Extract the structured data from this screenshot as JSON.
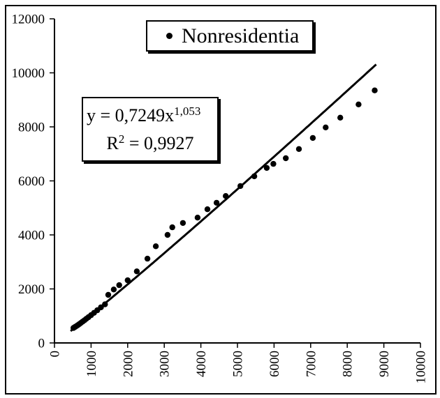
{
  "chart_data": {
    "type": "scatter",
    "title": "",
    "xlabel": "",
    "ylabel": "",
    "xlim": [
      0,
      10000
    ],
    "ylim": [
      0,
      12000
    ],
    "x_ticks": [
      0,
      1000,
      2000,
      3000,
      4000,
      5000,
      6000,
      7000,
      8000,
      9000,
      10000
    ],
    "y_ticks": [
      0,
      2000,
      4000,
      6000,
      8000,
      10000,
      12000
    ],
    "x_tick_rotation": -90,
    "grid": false,
    "legend": {
      "label": "Nonresidentia",
      "marker": "filled-circle",
      "position": "top-center"
    },
    "annotation": {
      "equation_base": "y = 0,7249x",
      "equation_exponent": "1,053",
      "r2_base": "R",
      "r2_exponent": "2",
      "r2_rest": " = 0,9927"
    },
    "colors": {
      "series": "#000000",
      "trendline": "#000000",
      "background": "#ffffff",
      "border": "#000000"
    },
    "series": [
      {
        "name": "Nonresidentia",
        "type": "scatter",
        "color": "#000000",
        "points": [
          [
            520,
            555
          ],
          [
            560,
            590
          ],
          [
            600,
            625
          ],
          [
            640,
            660
          ],
          [
            680,
            700
          ],
          [
            720,
            740
          ],
          [
            770,
            790
          ],
          [
            820,
            840
          ],
          [
            870,
            895
          ],
          [
            930,
            955
          ],
          [
            1000,
            1030
          ],
          [
            1080,
            1115
          ],
          [
            1170,
            1210
          ],
          [
            1270,
            1320
          ],
          [
            1380,
            1430
          ],
          [
            1470,
            1780
          ],
          [
            1620,
            1980
          ],
          [
            1770,
            2140
          ],
          [
            2000,
            2320
          ],
          [
            2250,
            2650
          ],
          [
            2540,
            3120
          ],
          [
            2770,
            3580
          ],
          [
            3090,
            4000
          ],
          [
            3220,
            4280
          ],
          [
            3510,
            4440
          ],
          [
            3910,
            4640
          ],
          [
            4180,
            4950
          ],
          [
            4430,
            5190
          ],
          [
            4680,
            5440
          ],
          [
            5080,
            5810
          ],
          [
            5460,
            6170
          ],
          [
            5800,
            6480
          ],
          [
            5980,
            6630
          ],
          [
            6320,
            6840
          ],
          [
            6680,
            7180
          ],
          [
            7060,
            7590
          ],
          [
            7410,
            7980
          ],
          [
            7810,
            8340
          ],
          [
            8310,
            8830
          ],
          [
            8750,
            9350
          ]
        ]
      },
      {
        "name": "Power trendline",
        "type": "power-fit",
        "color": "#000000",
        "a": 0.7249,
        "b": 1.053,
        "x_range": [
          440,
          8790
        ]
      }
    ]
  }
}
